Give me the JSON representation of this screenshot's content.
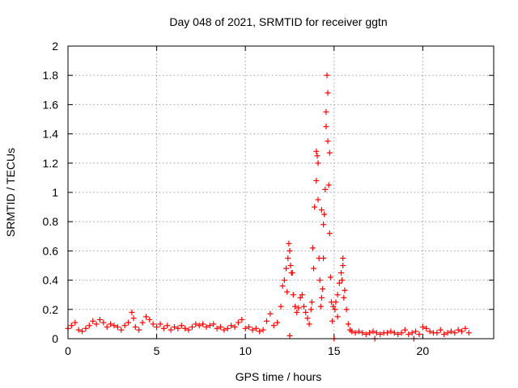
{
  "chart_data": {
    "type": "scatter",
    "title": "Day 048 of 2021, SRMTID for receiver ggtn",
    "xlabel": "GPS time / hours",
    "ylabel": "SRMTID / TECUs",
    "xlim": [
      0,
      24
    ],
    "ylim": [
      0,
      2
    ],
    "xticks": [
      0,
      5,
      10,
      15,
      20
    ],
    "xtick_labels": [
      "0",
      "5",
      "10",
      "15",
      "20"
    ],
    "yticks": [
      0,
      0.2,
      0.4,
      0.6,
      0.8,
      1,
      1.2,
      1.4,
      1.6,
      1.8,
      2
    ],
    "ytick_labels": [
      "0",
      "0.2",
      "0.4",
      "0.6",
      "0.8",
      "1",
      "1.2",
      "1.4",
      "1.6",
      "1.8",
      "2"
    ],
    "grid": true,
    "marker": "+",
    "marker_color": "#ff0000",
    "series": [
      {
        "name": "SRMTID",
        "x": [
          0.0,
          0.2,
          0.4,
          0.6,
          0.8,
          1.0,
          1.2,
          1.4,
          1.6,
          1.8,
          2.0,
          2.2,
          2.4,
          2.6,
          2.8,
          3.0,
          3.2,
          3.4,
          3.6,
          3.7,
          3.8,
          4.0,
          4.2,
          4.4,
          4.6,
          4.8,
          5.0,
          5.2,
          5.4,
          5.6,
          5.8,
          6.0,
          6.2,
          6.4,
          6.6,
          6.8,
          7.0,
          7.2,
          7.4,
          7.6,
          7.8,
          8.0,
          8.2,
          8.4,
          8.6,
          8.8,
          9.0,
          9.2,
          9.4,
          9.6,
          9.8,
          10.0,
          10.2,
          10.4,
          10.6,
          10.8,
          11.0,
          11.2,
          11.4,
          11.6,
          11.8,
          12.0,
          12.1,
          12.2,
          12.3,
          12.4,
          12.5,
          12.6,
          12.7,
          12.8,
          12.9,
          13.0,
          13.1,
          13.2,
          13.3,
          13.4,
          13.5,
          13.6,
          13.7,
          13.8,
          13.9,
          14.0,
          14.05,
          14.1,
          14.15,
          14.2,
          14.25,
          14.3,
          14.35,
          14.4,
          14.45,
          14.5,
          14.55,
          14.6,
          14.65,
          14.7,
          14.75,
          14.8,
          14.85,
          14.9,
          14.95,
          15.0,
          15.05,
          15.1,
          15.2,
          15.3,
          15.4,
          15.5,
          15.6,
          15.7,
          15.8,
          15.9,
          16.0,
          16.2,
          16.4,
          16.6,
          16.8,
          17.0,
          17.2,
          17.4,
          17.6,
          17.8,
          18.0,
          18.2,
          18.4,
          18.6,
          18.8,
          19.0,
          19.2,
          19.4,
          19.6,
          19.8,
          20.0,
          20.2,
          20.4,
          20.6,
          20.8,
          21.0,
          21.2,
          21.4,
          21.6,
          21.8,
          22.0,
          22.2,
          22.4,
          22.6,
          12.45,
          12.55,
          12.35,
          12.65,
          13.75,
          13.85,
          14.0,
          14.1,
          14.3,
          14.4,
          14.55,
          14.65,
          14.75,
          15.5,
          15.55,
          15.45,
          12.5,
          15.2,
          17.3,
          19.5
        ],
        "y": [
          0.07,
          0.09,
          0.11,
          0.06,
          0.05,
          0.07,
          0.09,
          0.12,
          0.1,
          0.13,
          0.11,
          0.08,
          0.1,
          0.09,
          0.08,
          0.06,
          0.09,
          0.11,
          0.18,
          0.14,
          0.08,
          0.06,
          0.11,
          0.15,
          0.13,
          0.1,
          0.08,
          0.1,
          0.07,
          0.09,
          0.06,
          0.08,
          0.07,
          0.09,
          0.07,
          0.06,
          0.08,
          0.1,
          0.09,
          0.1,
          0.08,
          0.09,
          0.1,
          0.07,
          0.08,
          0.06,
          0.07,
          0.09,
          0.08,
          0.11,
          0.13,
          0.07,
          0.08,
          0.06,
          0.07,
          0.05,
          0.06,
          0.12,
          0.17,
          0.09,
          0.11,
          0.22,
          0.36,
          0.4,
          0.48,
          0.55,
          0.6,
          0.45,
          0.3,
          0.22,
          0.18,
          0.21,
          0.28,
          0.3,
          0.22,
          0.18,
          0.14,
          0.1,
          0.2,
          0.62,
          0.9,
          1.28,
          1.25,
          0.95,
          0.55,
          0.4,
          0.22,
          0.28,
          0.34,
          0.55,
          0.85,
          1.02,
          1.45,
          1.8,
          1.35,
          1.05,
          0.72,
          0.42,
          0.25,
          0.12,
          0.22,
          0.0,
          0.2,
          0.25,
          0.3,
          0.38,
          0.45,
          0.5,
          0.33,
          0.2,
          0.1,
          0.06,
          0.05,
          0.04,
          0.05,
          0.04,
          0.03,
          0.04,
          0.05,
          0.04,
          0.03,
          0.04,
          0.04,
          0.05,
          0.04,
          0.03,
          0.04,
          0.06,
          0.03,
          0.04,
          0.05,
          0.03,
          0.08,
          0.07,
          0.05,
          0.04,
          0.04,
          0.06,
          0.03,
          0.04,
          0.05,
          0.04,
          0.06,
          0.05,
          0.07,
          0.04,
          0.65,
          0.5,
          0.32,
          0.45,
          0.25,
          0.48,
          1.08,
          1.2,
          0.88,
          0.78,
          1.55,
          1.68,
          1.27,
          0.55,
          0.28,
          0.4,
          0.02,
          0.15,
          0.0,
          0.0
        ]
      }
    ]
  }
}
